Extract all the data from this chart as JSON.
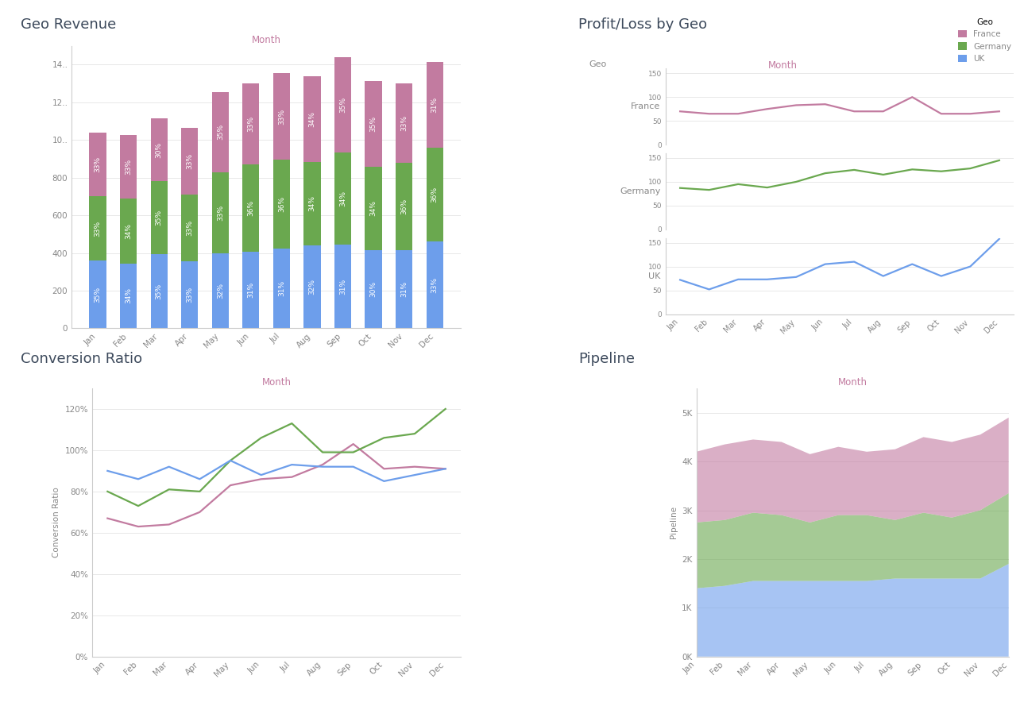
{
  "months": [
    "Jan",
    "Feb",
    "Mar",
    "Apr",
    "May",
    "Jun",
    "Jul",
    "Aug",
    "Sep",
    "Oct",
    "Nov",
    "Dec"
  ],
  "geo_revenue": {
    "uk": [
      360,
      345,
      395,
      355,
      400,
      405,
      425,
      440,
      445,
      415,
      415,
      460
    ],
    "germany": [
      340,
      345,
      385,
      355,
      430,
      465,
      470,
      445,
      490,
      445,
      465,
      500
    ],
    "france": [
      340,
      335,
      335,
      355,
      425,
      430,
      460,
      455,
      505,
      455,
      420,
      455
    ]
  },
  "geo_revenue_pct": {
    "uk": [
      35,
      34,
      35,
      33,
      32,
      31,
      31,
      32,
      31,
      30,
      31,
      33
    ],
    "germany": [
      33,
      34,
      35,
      33,
      33,
      36,
      36,
      34,
      34,
      34,
      36,
      36
    ],
    "france": [
      33,
      33,
      30,
      33,
      35,
      33,
      33,
      34,
      35,
      35,
      33,
      31
    ]
  },
  "profit_loss": {
    "france": [
      70,
      65,
      65,
      75,
      83,
      85,
      70,
      70,
      100,
      65,
      65,
      70
    ],
    "germany": [
      87,
      83,
      95,
      88,
      100,
      118,
      125,
      115,
      126,
      122,
      128,
      145
    ],
    "uk": [
      72,
      52,
      73,
      73,
      78,
      105,
      110,
      80,
      105,
      80,
      100,
      158
    ]
  },
  "conversion_ratio": {
    "france": [
      0.67,
      0.63,
      0.64,
      0.7,
      0.83,
      0.86,
      0.87,
      0.93,
      1.03,
      0.91,
      0.92,
      0.91
    ],
    "germany": [
      0.8,
      0.73,
      0.81,
      0.8,
      0.95,
      1.06,
      1.13,
      0.99,
      0.99,
      1.06,
      1.08,
      1.2
    ],
    "uk": [
      0.9,
      0.86,
      0.92,
      0.86,
      0.95,
      0.88,
      0.93,
      0.92,
      0.92,
      0.85,
      0.88,
      0.91
    ]
  },
  "pipeline": {
    "uk": [
      1400,
      1450,
      1550,
      1550,
      1550,
      1550,
      1550,
      1600,
      1600,
      1600,
      1600,
      1900
    ],
    "germany": [
      1350,
      1350,
      1400,
      1350,
      1200,
      1350,
      1350,
      1200,
      1350,
      1250,
      1400,
      1450
    ],
    "france": [
      1450,
      1550,
      1500,
      1500,
      1400,
      1400,
      1300,
      1450,
      1550,
      1550,
      1550,
      1550
    ]
  },
  "colors": {
    "france": "#c27ba0",
    "germany": "#6aa84f",
    "uk": "#6d9eeb",
    "title": "#3d4a5c",
    "axis_label": "#888888",
    "month_label": "#c27ba0",
    "grid": "#e8e8e8"
  },
  "bg_color": "#ffffff"
}
